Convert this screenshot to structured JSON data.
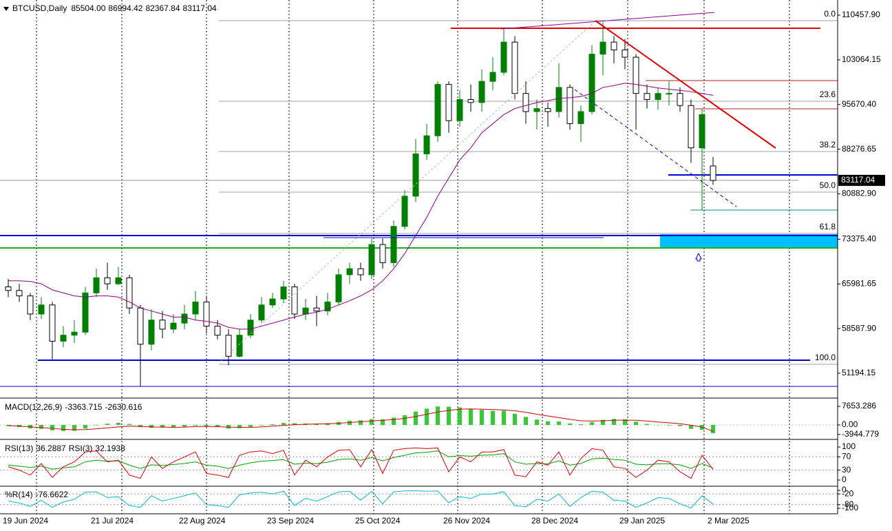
{
  "chart_data": [
    {
      "type": "candlestick",
      "title": "BTCUSD,Daily",
      "ohlc_labels": [
        "85504.00",
        "86994.42",
        "82367.84",
        "83117.04"
      ],
      "categories": [
        "19 Jun 2024",
        null,
        null,
        null,
        null,
        null,
        null,
        null,
        "21 Jul 2024",
        null,
        null,
        null,
        null,
        null,
        null,
        null,
        "22 Aug 2024",
        null,
        null,
        null,
        null,
        null,
        null,
        null,
        "23 Sep 2024",
        null,
        null,
        null,
        null,
        null,
        null,
        null,
        "25 Oct 2024",
        null,
        null,
        null,
        null,
        null,
        null,
        null,
        "26 Nov 2024",
        null,
        null,
        null,
        null,
        null,
        null,
        null,
        "28 Dec 2024",
        null,
        null,
        null,
        null,
        null,
        null,
        null,
        "29 Jan 2025",
        null,
        null,
        null,
        null,
        null,
        null,
        null,
        "2 Mar 2025"
      ],
      "open": [
        65500,
        64900,
        64000,
        61000,
        62500,
        56500,
        57500,
        58000,
        64500,
        67000,
        66000,
        67000,
        62000,
        56000,
        60000,
        58500,
        59500,
        61000,
        63000,
        59000,
        57500,
        54000,
        57500,
        60000,
        62500,
        63500,
        65500,
        61000,
        62000,
        61500,
        63000,
        67500,
        68500,
        67500,
        72500,
        69500,
        75500,
        80500,
        87500,
        90500,
        99000,
        93000,
        96500,
        96000,
        99500,
        101000,
        106000,
        97500,
        94500,
        95000,
        94500,
        98500,
        92500,
        94500,
        104000,
        106000,
        104700,
        103500,
        97500,
        96500,
        97500,
        97500,
        95500,
        88500,
        85504
      ],
      "high": [
        66800,
        66000,
        64500,
        63800,
        63000,
        59000,
        60000,
        65500,
        68500,
        69500,
        68800,
        67500,
        62500,
        61800,
        61500,
        61000,
        62500,
        64800,
        64000,
        60000,
        58500,
        58500,
        61000,
        63800,
        64500,
        66500,
        66000,
        63500,
        64000,
        64500,
        68500,
        69500,
        69500,
        73500,
        73500,
        76500,
        81500,
        90000,
        92500,
        99500,
        99500,
        98000,
        99000,
        101500,
        103500,
        108300,
        107000,
        99500,
        96500,
        96000,
        102500,
        99000,
        95500,
        105500,
        109300,
        107000,
        106500,
        104000,
        99000,
        98500,
        99500,
        98500,
        96500,
        95000,
        86994.42
      ],
      "low": [
        63800,
        63000,
        60000,
        60200,
        53500,
        55500,
        56200,
        57500,
        63800,
        65000,
        65800,
        61000,
        49000,
        55000,
        57000,
        57800,
        58500,
        60000,
        57800,
        56800,
        52500,
        53800,
        57000,
        59500,
        62000,
        62800,
        60200,
        60000,
        59000,
        60800,
        62500,
        66000,
        66500,
        66800,
        68500,
        68800,
        75000,
        79500,
        86500,
        89500,
        91000,
        92000,
        94500,
        94500,
        98000,
        100500,
        96500,
        92500,
        91500,
        92000,
        93500,
        91500,
        89500,
        94000,
        100500,
        102500,
        101500,
        91500,
        95000,
        94800,
        95500,
        94500,
        86000,
        78200,
        82367.84
      ],
      "close": [
        64900,
        64000,
        61000,
        62500,
        56500,
        57500,
        58000,
        64500,
        67000,
        66000,
        67000,
        62000,
        56000,
        60000,
        58500,
        59500,
        61000,
        63000,
        59000,
        57500,
        54000,
        57500,
        60000,
        62500,
        63500,
        65500,
        61000,
        62000,
        61500,
        63000,
        67500,
        68500,
        67500,
        72500,
        69500,
        75500,
        80500,
        87500,
        90500,
        99000,
        93000,
        96500,
        96000,
        99500,
        101000,
        106000,
        97500,
        94500,
        95000,
        94500,
        98500,
        92500,
        94500,
        104000,
        106000,
        104700,
        103500,
        97500,
        96500,
        97500,
        97500,
        95500,
        88500,
        94000,
        83117.04
      ],
      "bull_color": "#008000",
      "bear_color": "#000000",
      "ma": {
        "color": "#8b008b",
        "values": [
          66500,
          66500,
          66400,
          66000,
          65000,
          64500,
          64000,
          63800,
          64000,
          64000,
          63800,
          63000,
          62000,
          61500,
          61000,
          60500,
          60500,
          60000,
          59800,
          59500,
          58800,
          58500,
          58500,
          59000,
          59500,
          60000,
          60500,
          61000,
          61300,
          61800,
          62500,
          63200,
          64000,
          65000,
          66500,
          68500,
          71000,
          74000,
          77000,
          80500,
          83500,
          86500,
          88500,
          91000,
          92500,
          94000,
          95000,
          95500,
          96000,
          96300,
          96700,
          96800,
          97000,
          97500,
          98500,
          98800,
          99200,
          99000,
          98700,
          98400,
          98200,
          98000,
          97800,
          97500,
          97200
        ]
      },
      "levels": [
        {
          "price": 108292,
          "color": "#e00000"
        },
        {
          "price": 84016,
          "color": "#0000cc"
        },
        {
          "price": 78204,
          "color": "#008b8b"
        },
        {
          "price": 73987,
          "color": "#0000cc"
        },
        {
          "price": 71936,
          "color": "#22aa22"
        },
        {
          "price": 53357,
          "color": "#0000cc"
        },
        {
          "price": 49027,
          "color": "#0000cc"
        },
        {
          "price": 99630,
          "color": "#b22222"
        },
        {
          "price": 94958,
          "color": "#b22222"
        }
      ],
      "fib_levels": [
        {
          "level": {
            "value": 0,
            "label": "0.0"
          },
          "price": 109546
        },
        {
          "level": 23.6,
          "price": 96211
        },
        {
          "level": 38.2,
          "price": 87891
        },
        {
          "level": {
            "value": 50,
            "label": "50.0"
          },
          "price": 81167
        },
        {
          "level": 61.8,
          "price": 74329
        },
        {
          "level": {
            "value": 100,
            "label": "100.0"
          },
          "price": 52673
        }
      ],
      "ylim": [
        47091,
        112965
      ],
      "yticks": [
        {
          "value": 110457.9,
          "label": "110457.90"
        },
        103064.15,
        {
          "value": 95670.4,
          "label": "95670.40"
        },
        88276.65,
        {
          "value": 80882.9,
          "label": "80882.90"
        },
        {
          "value": 73375.4,
          "label": "73375.40"
        },
        65981.65,
        {
          "value": 58587.9,
          "label": "58587.90"
        },
        51194.15
      ]
    },
    {
      "type": "macd",
      "title": "MACD(12,26,9)",
      "color": "#33cc33",
      "signal_color": "#d00000",
      "values": [
        -500,
        -900,
        -1400,
        -1600,
        -2200,
        -2500,
        -2400,
        -1500,
        -200,
        500,
        900,
        400,
        -900,
        -1200,
        -1100,
        -1000,
        -700,
        -300,
        -500,
        -900,
        -1500,
        -1300,
        -800,
        -200,
        300,
        800,
        700,
        600,
        500,
        700,
        1200,
        1700,
        1900,
        2400,
        2300,
        3000,
        4000,
        5500,
        6700,
        7600,
        7500,
        7200,
        6600,
        6200,
        5800,
        5900,
        4600,
        3300,
        2200,
        1500,
        1400,
        600,
        300,
        1100,
        2100,
        2500,
        2300,
        1300,
        400,
        -100,
        -200,
        -500,
        -1600,
        -2000,
        -3363.715
      ],
      "signal": [
        -300,
        -500,
        -800,
        -1100,
        -1400,
        -1800,
        -2000,
        -1900,
        -1600,
        -1200,
        -800,
        -500,
        -600,
        -800,
        -900,
        -1000,
        -900,
        -700,
        -600,
        -700,
        -900,
        -1000,
        -1000,
        -800,
        -500,
        -200,
        100,
        300,
        400,
        500,
        700,
        1000,
        1300,
        1600,
        1900,
        2200,
        2700,
        3500,
        4400,
        5300,
        6000,
        6500,
        6600,
        6500,
        6300,
        6200,
        5800,
        5200,
        4400,
        3700,
        3000,
        2300,
        1700,
        1600,
        1700,
        1900,
        2000,
        1900,
        1600,
        1200,
        900,
        500,
        -100,
        -900,
        -2630.616
      ],
      "ylim": [
        -5669,
        10487
      ],
      "yticks": [
        7653.286,
        {
          "value": 0,
          "label": "0.00"
        },
        -3944.779
      ]
    },
    {
      "type": "line",
      "hlines": [
        70,
        30
      ],
      "series": [
        {
          "name": "RSI(13)",
          "color": "#00a000",
          "values": [
            45,
            42,
            38,
            42,
            33,
            37,
            40,
            55,
            60,
            57,
            58,
            45,
            35,
            46,
            44,
            47,
            50,
            55,
            45,
            42,
            35,
            45,
            52,
            57,
            59,
            62,
            48,
            51,
            50,
            54,
            62,
            64,
            60,
            68,
            58,
            68,
            75,
            82,
            84,
            88,
            70,
            74,
            72,
            75,
            76,
            80,
            55,
            48,
            50,
            49,
            58,
            45,
            50,
            64,
            66,
            62,
            60,
            48,
            46,
            49,
            49,
            46,
            35,
            50,
            36.2887
          ]
        },
        {
          "name": "RSI(3)",
          "color": "#e00000",
          "values": [
            40,
            30,
            15,
            50,
            8,
            40,
            55,
            85,
            88,
            55,
            60,
            15,
            5,
            70,
            35,
            55,
            70,
            85,
            20,
            15,
            8,
            75,
            85,
            88,
            80,
            90,
            15,
            60,
            40,
            70,
            90,
            92,
            40,
            92,
            20,
            90,
            95,
            97,
            95,
            97,
            25,
            70,
            55,
            85,
            85,
            92,
            15,
            10,
            55,
            45,
            85,
            15,
            65,
            95,
            90,
            40,
            35,
            8,
            30,
            60,
            55,
            25,
            5,
            75,
            32.1938
          ]
        }
      ],
      "ylim": [
        -16.7,
        118.75
      ],
      "yticks": [
        100,
        70,
        30,
        0
      ]
    },
    {
      "type": "line",
      "hlines": [
        -20,
        -80
      ],
      "series": [
        {
          "name": "%R(14)",
          "color": "#00bcd4",
          "values": [
            -60,
            -70,
            -90,
            -55,
            -95,
            -65,
            -50,
            -10,
            -8,
            -40,
            -35,
            -85,
            -95,
            -30,
            -60,
            -45,
            -30,
            -15,
            -80,
            -85,
            -95,
            -25,
            -15,
            -10,
            -20,
            -5,
            -85,
            -45,
            -60,
            -35,
            -8,
            -5,
            -55,
            -5,
            -75,
            -8,
            -3,
            -2,
            -5,
            -3,
            -70,
            -35,
            -45,
            -20,
            -20,
            -8,
            -85,
            -92,
            -50,
            -60,
            -20,
            -90,
            -40,
            -5,
            -10,
            -55,
            -60,
            -95,
            -70,
            -40,
            -45,
            -75,
            -98,
            -30,
            -76.6622
          ]
        }
      ],
      "ylim": [
        -126.9,
        19.2
      ],
      "yticks": [
        0,
        -20,
        -80,
        -100
      ]
    }
  ]
}
